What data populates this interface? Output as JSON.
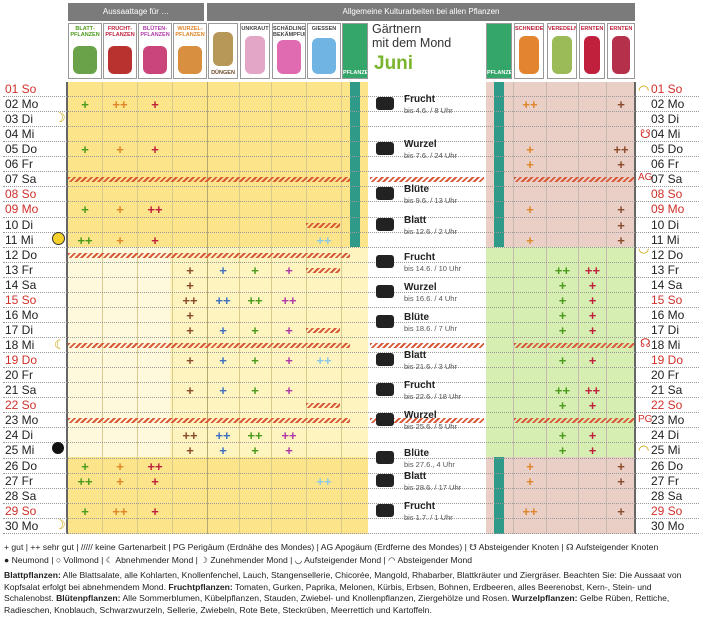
{
  "header": {
    "sow_days": "Aussaattage für …",
    "general_work": "Allgemeine Kulturarbeiten bei allen Pflanzen",
    "title_line1": "Gärtnern",
    "title_line2": "mit dem Mond",
    "month": "Juni"
  },
  "icons": {
    "blatt": "BLATT-PFLANZEN",
    "frucht": "FRUCHT-PFLANZEN",
    "blueten": "BLÜTEN-PFLANZEN",
    "wurzel": "WURZEL-PFLANZEN",
    "duengen": "DÜNGEN",
    "unkraut": "UNKRAUT",
    "schaedling": "SCHÄDLINGS-BEKÄMPFUNG",
    "giessen": "GIESSEN",
    "pflanzen": "PFLANZEN",
    "pflanzen2": "PFLANZEN",
    "schneiden": "SCHNEIDEN",
    "veredeln": "VEREDELN",
    "ernten": "ERNTEN",
    "ernten2": "ERNTEN"
  },
  "days": [
    {
      "d": "01",
      "w": "So",
      "red": true
    },
    {
      "d": "02",
      "w": "Mo"
    },
    {
      "d": "03",
      "w": "Di"
    },
    {
      "d": "04",
      "w": "Mi"
    },
    {
      "d": "05",
      "w": "Do"
    },
    {
      "d": "06",
      "w": "Fr"
    },
    {
      "d": "07",
      "w": "Sa"
    },
    {
      "d": "08",
      "w": "So",
      "red": true
    },
    {
      "d": "09",
      "w": "Mo",
      "red": true
    },
    {
      "d": "10",
      "w": "Di"
    },
    {
      "d": "11",
      "w": "Mi"
    },
    {
      "d": "12",
      "w": "Do"
    },
    {
      "d": "13",
      "w": "Fr"
    },
    {
      "d": "14",
      "w": "Sa"
    },
    {
      "d": "15",
      "w": "So",
      "red": true
    },
    {
      "d": "16",
      "w": "Mo"
    },
    {
      "d": "17",
      "w": "Di"
    },
    {
      "d": "18",
      "w": "Mi"
    },
    {
      "d": "19",
      "w": "Do",
      "red": true
    },
    {
      "d": "20",
      "w": "Fr"
    },
    {
      "d": "21",
      "w": "Sa"
    },
    {
      "d": "22",
      "w": "So",
      "red": true
    },
    {
      "d": "23",
      "w": "Mo"
    },
    {
      "d": "24",
      "w": "Di"
    },
    {
      "d": "25",
      "w": "Mi"
    },
    {
      "d": "26",
      "w": "Do"
    },
    {
      "d": "27",
      "w": "Fr"
    },
    {
      "d": "28",
      "w": "Sa"
    },
    {
      "d": "29",
      "w": "So",
      "red": true
    },
    {
      "d": "30",
      "w": "Mo"
    }
  ],
  "signs": [
    {
      "name": "Frucht",
      "until": "bis 4.6. / 8 Uhr"
    },
    {
      "name": "Wurzel",
      "until": "bis 7.6. / 24 Uhr"
    },
    {
      "name": "Blüte",
      "until": "bis 9.6. / 13 Uhr"
    },
    {
      "name": "Blatt",
      "until": "bis 12.6. / 2 Uhr"
    },
    {
      "name": "Frucht",
      "until": "bis 14.6. / 10 Uhr"
    },
    {
      "name": "Wurzel",
      "until": "bis 16.6. / 4 Uhr"
    },
    {
      "name": "Blüte",
      "until": "bis 18.6. / 7 Uhr"
    },
    {
      "name": "Blatt",
      "until": "bis 21.6. / 3 Uhr"
    },
    {
      "name": "Frucht",
      "until": "bis 22.6. / 18 Uhr"
    },
    {
      "name": "Wurzel",
      "until": "bis 25.6. / 5 Uhr"
    },
    {
      "name": "Blüte",
      "until": "bis 27.6., 4 Uhr"
    },
    {
      "name": "Blatt",
      "until": "bis 28.6. / 17 Uhr"
    },
    {
      "name": "Frucht",
      "until": "bis 1.7. / 1 Uhr"
    }
  ],
  "markers": {
    "ag": "AG",
    "pg": "PG"
  },
  "legend": {
    "line1": "+ gut | ++ sehr gut | ///// keine Gartenarbeit | PG Perigäum (Erdnähe des Mondes) | AG Apogäum (Erdferne des Mondes) | ☋ Absteigender Knoten | ☊ Aufsteigender Knoten",
    "line2": "● Neumond | ○ Vollmond | ☾ Abnehmender Mond | ☽ Zunehmender Mond | ◡ Aufsteigender Mond | ◠ Absteigender Mond",
    "blatt_label": "Blattpflanzen:",
    "blatt_text": "Alle Blattsalate, alle Kohlarten, Knollenfenchel, Lauch, Stangensellerie, Chicorée, Mangold, Rhabarber, Blattkräuter und Ziergräser. Beachten Sie: Die Aussaat von Kopfsalat erfolgt bei abnehmendem Mond.",
    "frucht_label": "Fruchtpflanzen:",
    "frucht_text": "Tomaten, Gurken, Paprika, Melonen, Kürbis, Erbsen, Bohnen, Erdbeeren, alles Beerenobst, Kern-, Stein- und Schalenobst.",
    "bluete_label": "Blütenpflanzen:",
    "bluete_text": "Alle Sommerblumen, Kübelpflanzen, Stauden, Zwiebel- und Knollenpflanzen, Ziergehölze und Rosen.",
    "wurzel_label": "Wurzelpflanzen:",
    "wurzel_text": "Gelbe Rüben, Rettiche, Radieschen, Knoblauch, Schwarzwurzeln, Sellerie, Zwiebeln, Rote Bete, Steckrüben, Meerrettich und Kartoffeln."
  }
}
